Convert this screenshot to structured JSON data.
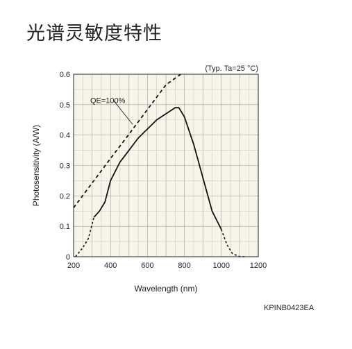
{
  "title": "光谱灵敏度特性",
  "code": "KPINB0423EA",
  "chart_data": {
    "type": "line",
    "xlabel": "Wavelength (nm)",
    "ylabel": "Photosensitivity (A/W)",
    "condition": "(Typ. Ta=25 °C)",
    "xlim": [
      200,
      1200
    ],
    "ylim": [
      0,
      0.6
    ],
    "xticks": [
      200,
      400,
      600,
      800,
      1000,
      1200
    ],
    "yticks": [
      0,
      0.1,
      0.2,
      0.3,
      0.4,
      0.5,
      0.6
    ],
    "grid": true,
    "background": "#f6f5ea",
    "series": [
      {
        "name": "QE=100%",
        "style": "dashed",
        "x": [
          200,
          300,
          400,
          500,
          600,
          700,
          780
        ],
        "y": [
          0.161,
          0.242,
          0.323,
          0.403,
          0.484,
          0.565,
          0.6
        ]
      },
      {
        "name": "",
        "style": "solid",
        "x": [
          210,
          250,
          280,
          310,
          340,
          370,
          400,
          450,
          500,
          550,
          600,
          650,
          700,
          750,
          770,
          800,
          850,
          900,
          950,
          1000,
          1030,
          1060,
          1100,
          1130
        ],
        "y": [
          0.0,
          0.03,
          0.06,
          0.13,
          0.15,
          0.18,
          0.25,
          0.31,
          0.35,
          0.39,
          0.42,
          0.45,
          0.47,
          0.49,
          0.49,
          0.46,
          0.37,
          0.26,
          0.15,
          0.09,
          0.04,
          0.01,
          0.0,
          0.0
        ]
      }
    ],
    "solid_dashed_below_x": 310,
    "solid_dashed_above_x": 1000
  }
}
